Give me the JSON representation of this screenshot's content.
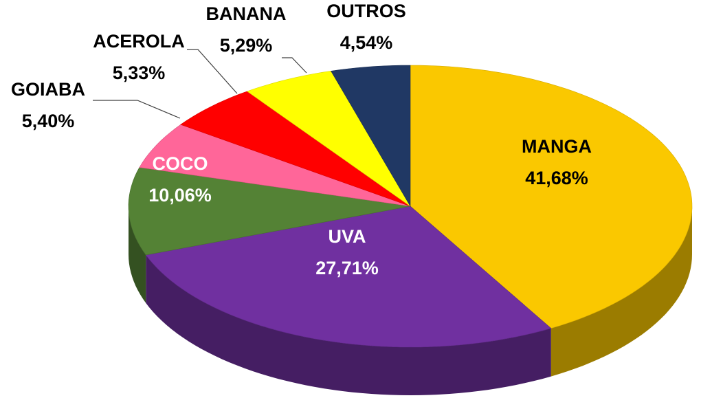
{
  "chart_data": {
    "type": "pie",
    "categories": [
      "MANGA",
      "UVA",
      "COCO",
      "GOIABA",
      "ACEROLA",
      "BANANA",
      "OUTROS"
    ],
    "values": [
      41.68,
      27.71,
      10.06,
      5.4,
      5.33,
      5.29,
      4.54
    ],
    "value_labels": [
      "41,68%",
      "27,71%",
      "10,06%",
      "5,40%",
      "5,33%",
      "5,29%",
      "4,54%"
    ],
    "colors": [
      "#fac800",
      "#7030a0",
      "#548235",
      "#ff6699",
      "#ff0000",
      "#ffff00",
      "#203864"
    ]
  }
}
